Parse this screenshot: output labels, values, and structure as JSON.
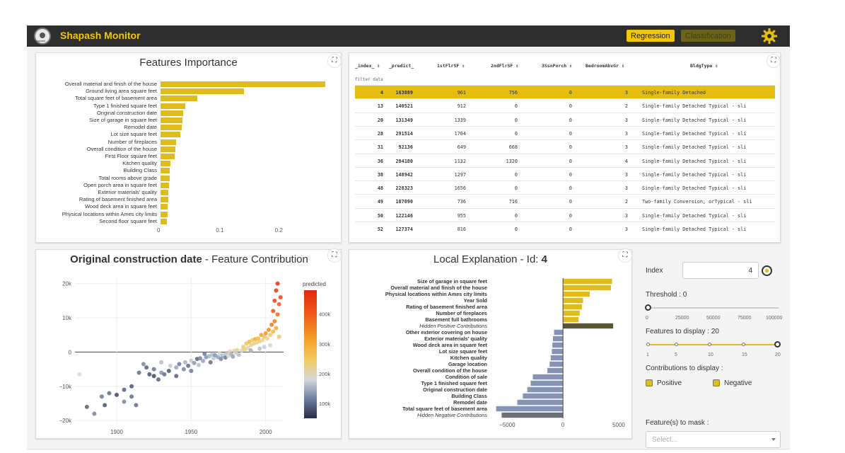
{
  "navbar": {
    "logo_text": "Shapash",
    "title": "Shapash Monitor",
    "btn_regression": "Regression",
    "btn_classification": "Classification",
    "gear_icon": "gear-icon",
    "accent": "#f2c70a"
  },
  "features_importance": {
    "title": "Features Importance",
    "expand_icon": "expand-icon",
    "chart_data": {
      "type": "bar",
      "orientation": "horizontal",
      "title": "Features Importance",
      "categories": [
        "Overall material and finish of the house",
        "Ground living area square feet",
        "Total square feet of basement area",
        "Type 1 finished square feet",
        "Original construction date",
        "Size of garage in square feet",
        "Remodel date",
        "Lot size square feet",
        "Number of fireplaces",
        "Overall condition of the house",
        "First Floor square feet",
        "Kitchen quality",
        "Building Class",
        "Total rooms above grade",
        "Open porch area in square feet",
        "Exterior materials' quality",
        "Rating of basement finished area",
        "Wood deck area in square feet",
        "Physical locations within Ames city limits",
        "Second floor square feet"
      ],
      "values": [
        0.28,
        0.142,
        0.062,
        0.042,
        0.038,
        0.037,
        0.036,
        0.034,
        0.026,
        0.025,
        0.024,
        0.017,
        0.016,
        0.015,
        0.014,
        0.013,
        0.013,
        0.012,
        0.012,
        0.011
      ],
      "xticks": [
        "0",
        "0.1",
        "0.2"
      ],
      "xlim": [
        0,
        0.3
      ],
      "color": "#dfbb1b"
    }
  },
  "table": {
    "expand_icon": "expand-icon",
    "columns": [
      "_index_ ⇕",
      "_predict_",
      "1stFlrSF ⇕",
      "2ndFlrSF ⇕",
      "3SsnPorch ⇕",
      "BedroomAbvGr ⇕",
      "BldgType ⇕"
    ],
    "filter_placeholder": "filter data",
    "rows": [
      [
        "4",
        "163889",
        "961",
        "756",
        "0",
        "3",
        "Single-family Detached"
      ],
      [
        "13",
        "140521",
        "912",
        "0",
        "0",
        "2",
        "Single-family Detached Typical - sli"
      ],
      [
        "20",
        "131349",
        "1339",
        "0",
        "0",
        "3",
        "Single-family Detached Typical - sli"
      ],
      [
        "28",
        "291514",
        "1704",
        "0",
        "0",
        "3",
        "Single-family Detached Typical - sli"
      ],
      [
        "31",
        "92136",
        "649",
        "668",
        "0",
        "3",
        "Single-family Detached Typical - sli"
      ],
      [
        "36",
        "284180",
        "1132",
        "1320",
        "0",
        "4",
        "Single-family Detached Typical - sli"
      ],
      [
        "38",
        "148942",
        "1297",
        "0",
        "0",
        "3",
        "Single-family Detached Typical - sli"
      ],
      [
        "48",
        "228323",
        "1656",
        "0",
        "0",
        "3",
        "Single-family Detached Typical - sli"
      ],
      [
        "49",
        "107090",
        "736",
        "716",
        "0",
        "2",
        "Two-family Conversion; orTypical - sli"
      ],
      [
        "50",
        "122146",
        "955",
        "0",
        "0",
        "3",
        "Single-family Detached Typical - sli"
      ],
      [
        "52",
        "127374",
        "816",
        "0",
        "0",
        "3",
        "Single-family Detached Typical - sli"
      ]
    ],
    "selected_row": 0,
    "selected_color": "#e4bd0e"
  },
  "feature_contribution": {
    "title_bold": "Original construction date",
    "title_rest": " - Feature Contribution",
    "expand_icon": "expand-icon",
    "chart_data": {
      "type": "scatter",
      "xticks": [
        "1900",
        "1950",
        "2000"
      ],
      "yticks": [
        "20k",
        "10k",
        "0",
        "−10k",
        "−20k"
      ],
      "xlim": [
        1872,
        2012
      ],
      "ylim": [
        -21000,
        22000
      ],
      "colorbar_title": "predicted",
      "colorbar_ticks": [
        "400k",
        "300k",
        "200k",
        "100k"
      ],
      "colorbar_range": [
        50000,
        480000
      ],
      "points": [
        [
          1875,
          -6500,
          180000
        ],
        [
          1880,
          -16000,
          90000
        ],
        [
          1885,
          -18000,
          120000
        ],
        [
          1890,
          -13000,
          110000
        ],
        [
          1892,
          -15500,
          80000
        ],
        [
          1895,
          -12000,
          100000
        ],
        [
          1900,
          -12500,
          70000
        ],
        [
          1905,
          -11000,
          90000
        ],
        [
          1905,
          -14500,
          120000
        ],
        [
          1910,
          -10000,
          80000
        ],
        [
          1910,
          -13000,
          100000
        ],
        [
          1913,
          -15500,
          100000
        ],
        [
          1915,
          -6000,
          100000
        ],
        [
          1918,
          -3500,
          120000
        ],
        [
          1920,
          -4500,
          90000
        ],
        [
          1922,
          -6500,
          80000
        ],
        [
          1925,
          -7000,
          70000
        ],
        [
          1925,
          -5000,
          110000
        ],
        [
          1928,
          -8000,
          90000
        ],
        [
          1930,
          -6000,
          130000
        ],
        [
          1930,
          -3000,
          160000
        ],
        [
          1932,
          -6500,
          100000
        ],
        [
          1935,
          -5500,
          80000
        ],
        [
          1936,
          -4000,
          170000
        ],
        [
          1940,
          -4500,
          140000
        ],
        [
          1940,
          -7000,
          90000
        ],
        [
          1942,
          -3500,
          110000
        ],
        [
          1945,
          -5000,
          120000
        ],
        [
          1946,
          -3000,
          150000
        ],
        [
          1948,
          -4000,
          100000
        ],
        [
          1950,
          -2500,
          170000
        ],
        [
          1950,
          -5500,
          110000
        ],
        [
          1952,
          -3200,
          130000
        ],
        [
          1954,
          -2000,
          90000
        ],
        [
          1955,
          -3800,
          160000
        ],
        [
          1956,
          -1800,
          120000
        ],
        [
          1958,
          -2600,
          140000
        ],
        [
          1959,
          -500,
          110000
        ],
        [
          1960,
          -1500,
          130000
        ],
        [
          1962,
          -1200,
          150000
        ],
        [
          1963,
          -3000,
          100000
        ],
        [
          1964,
          -800,
          160000
        ],
        [
          1965,
          -1800,
          170000
        ],
        [
          1966,
          -900,
          130000
        ],
        [
          1968,
          -1500,
          140000
        ],
        [
          1969,
          -400,
          180000
        ],
        [
          1970,
          -2000,
          120000
        ],
        [
          1971,
          -1000,
          150000
        ],
        [
          1972,
          -700,
          170000
        ],
        [
          1973,
          -1600,
          110000
        ],
        [
          1974,
          -300,
          160000
        ],
        [
          1975,
          -1100,
          190000
        ],
        [
          1976,
          200,
          200000
        ],
        [
          1977,
          -600,
          150000
        ],
        [
          1978,
          -1300,
          140000
        ],
        [
          1979,
          400,
          210000
        ],
        [
          1980,
          -200,
          170000
        ],
        [
          1981,
          600,
          220000
        ],
        [
          1982,
          -800,
          160000
        ],
        [
          1984,
          500,
          190000
        ],
        [
          1985,
          1500,
          240000
        ],
        [
          1986,
          800,
          230000
        ],
        [
          1987,
          2500,
          260000
        ],
        [
          1988,
          1200,
          200000
        ],
        [
          1989,
          3000,
          280000
        ],
        [
          1990,
          2000,
          210000
        ],
        [
          1991,
          3500,
          250000
        ],
        [
          1992,
          2500,
          230000
        ],
        [
          1993,
          3800,
          300000
        ],
        [
          1994,
          2800,
          220000
        ],
        [
          1995,
          4000,
          270000
        ],
        [
          1996,
          3200,
          240000
        ],
        [
          1997,
          5000,
          310000
        ],
        [
          1998,
          3500,
          210000
        ],
        [
          1999,
          4500,
          260000
        ],
        [
          2000,
          5500,
          330000
        ],
        [
          2001,
          4000,
          230000
        ],
        [
          2002,
          6500,
          350000
        ],
        [
          2003,
          5000,
          250000
        ],
        [
          2004,
          8000,
          370000
        ],
        [
          2005,
          6000,
          280000
        ],
        [
          2005,
          12000,
          420000
        ],
        [
          2006,
          9000,
          360000
        ],
        [
          2006,
          15000,
          440000
        ],
        [
          2007,
          7000,
          300000
        ],
        [
          2007,
          18000,
          460000
        ],
        [
          2008,
          11000,
          380000
        ],
        [
          2008,
          20000,
          470000
        ],
        [
          2009,
          14000,
          400000
        ],
        [
          2009,
          4500,
          250000
        ],
        [
          2010,
          16000,
          430000
        ],
        [
          2003,
          2000,
          190000
        ],
        [
          1999,
          1500,
          170000
        ],
        [
          1996,
          1000,
          160000
        ],
        [
          1990,
          500,
          150000
        ]
      ]
    }
  },
  "local_explanation": {
    "title": "Local Explanation - Id: ",
    "title_id": "4",
    "expand_icon": "expand-icon",
    "chart_data": {
      "type": "bar",
      "orientation": "horizontal",
      "xticks": [
        "−5000",
        "0",
        "5000"
      ],
      "xlim": [
        -6100,
        5700
      ],
      "categories": [
        "Size of garage in square feet",
        "Overall material and finish of the house",
        "Physical locations within Ames city limits",
        "Year Sold",
        "Rating of basement finished area",
        "Number of fireplaces",
        "Basement full bathrooms",
        "Hidden Positive Contributions",
        "Other exterior covering on house",
        "Exterior materials' quality",
        "Wood deck area in square feet",
        "Lot size square feet",
        "Kitchen quality",
        "Garage location",
        "Overall condition of the house",
        "Condition of sale",
        "Type 1 finished square feet",
        "Original construction date",
        "Building Class",
        "Remodel date",
        "Total square feet of basement area",
        "Hidden Negative Contributions"
      ],
      "values": [
        4400,
        4300,
        2400,
        1800,
        1700,
        1500,
        1400,
        4500,
        -800,
        -900,
        -950,
        -1000,
        -1100,
        -1200,
        -1400,
        -2700,
        -2900,
        -3200,
        -3600,
        -4100,
        -6000,
        -5500
      ],
      "hidden": [
        false,
        false,
        false,
        false,
        false,
        false,
        false,
        true,
        false,
        false,
        false,
        false,
        false,
        false,
        false,
        false,
        false,
        false,
        false,
        false,
        false,
        true
      ],
      "positive_color": "#dfbb1b",
      "negative_color": "#8594b5",
      "hidden_pos_color": "#5a5433",
      "hidden_neg_color": "#6a6f7a"
    }
  },
  "controls": {
    "index_label": "Index",
    "index_value": "4",
    "threshold_label": "Threshold : 0",
    "threshold_ticks": [
      "0",
      "25000",
      "50000",
      "75000",
      "100000"
    ],
    "threshold_value": 0,
    "features_label": "Features to display : 20",
    "features_ticks": [
      "1",
      "5",
      "10",
      "15",
      "20"
    ],
    "features_value": 20,
    "contrib_label": "Contributions to display :",
    "positive_label": "Positive",
    "negative_label": "Negative",
    "mask_label": "Feature(s) to mask :",
    "mask_placeholder": "Select..."
  }
}
